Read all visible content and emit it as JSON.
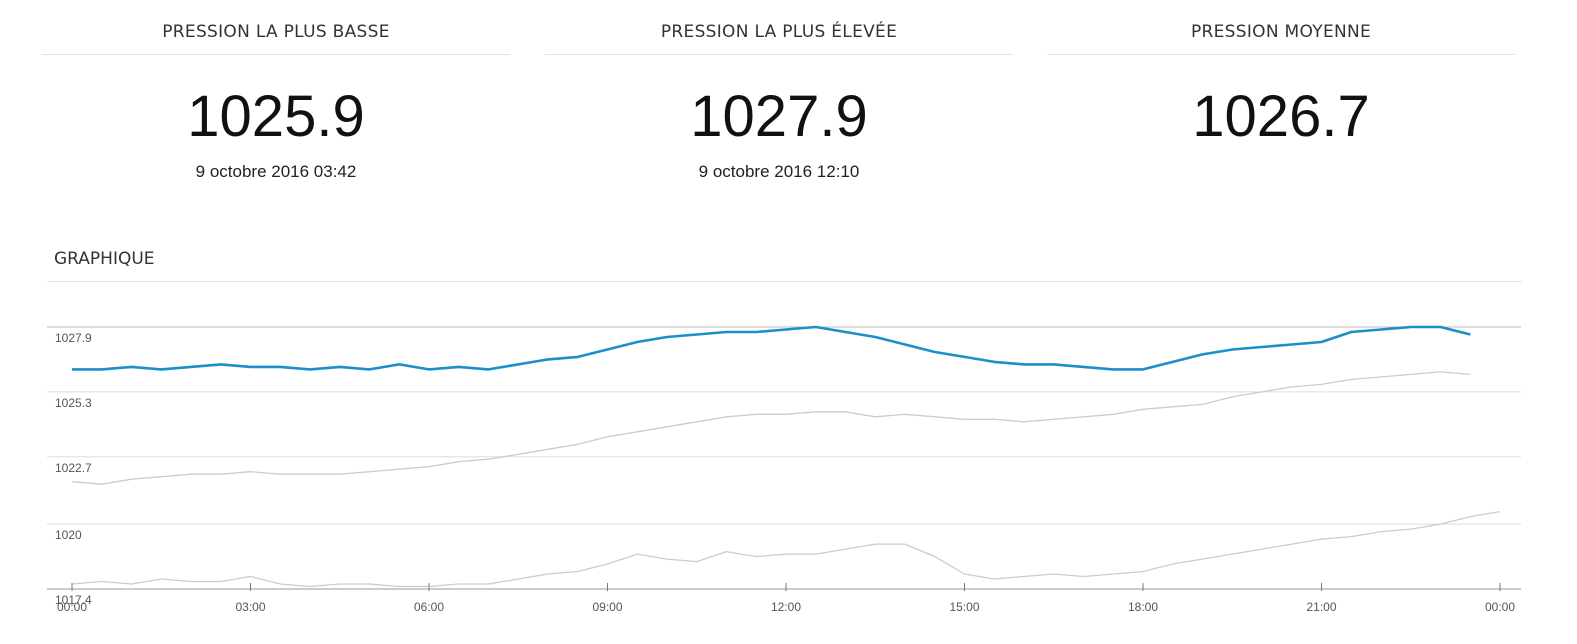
{
  "stats": [
    {
      "title": "PRESSION LA PLUS BASSE",
      "value": "1025.9",
      "date": "9 octobre 2016 03:42"
    },
    {
      "title": "PRESSION LA PLUS ÉLEVÉE",
      "value": "1027.9",
      "date": "9 octobre 2016 12:10"
    },
    {
      "title": "PRESSION MOYENNE",
      "value": "1026.7",
      "date": ""
    }
  ],
  "graph_title": "GRAPHIQUE",
  "chart_data": {
    "type": "line",
    "ylim": [
      1017.4,
      1027.9
    ],
    "y_ticks": [
      {
        "value": 1027.9,
        "label": "1027.9"
      },
      {
        "value": 1025.3,
        "label": "1025.3"
      },
      {
        "value": 1022.7,
        "label": "1022.7"
      },
      {
        "value": 1020,
        "label": "1020"
      },
      {
        "value": 1017.4,
        "label": "1017.4"
      }
    ],
    "xlim": [
      0,
      24
    ],
    "x_ticks": [
      {
        "value": 0,
        "label": "00:00"
      },
      {
        "value": 3,
        "label": "03:00"
      },
      {
        "value": 6,
        "label": "06:00"
      },
      {
        "value": 9,
        "label": "09:00"
      },
      {
        "value": 12,
        "label": "12:00"
      },
      {
        "value": 15,
        "label": "15:00"
      },
      {
        "value": 18,
        "label": "18:00"
      },
      {
        "value": 21,
        "label": "21:00"
      },
      {
        "value": 24,
        "label": "00:00"
      }
    ],
    "grid": true,
    "colors": {
      "primary": "#1a8fc9",
      "secondary": "#cccccc",
      "grid": "#dddddd",
      "top_line": "#bbbbbb"
    },
    "series": [
      {
        "color": "#1a8fc9",
        "x": [
          0,
          0.5,
          1,
          1.5,
          2,
          2.5,
          3,
          3.5,
          4,
          4.5,
          5,
          5.5,
          6,
          6.5,
          7,
          7.5,
          8,
          8.5,
          9,
          9.5,
          10,
          10.5,
          11,
          11.5,
          12,
          12.5,
          13,
          13.5,
          14,
          14.5,
          15,
          15.5,
          16,
          16.5,
          17,
          17.5,
          18,
          18.5,
          19,
          19.5,
          20,
          20.5,
          21,
          21.5,
          22,
          22.5,
          23,
          23.5
        ],
        "y": [
          1026.2,
          1026.2,
          1026.3,
          1026.2,
          1026.3,
          1026.4,
          1026.3,
          1026.3,
          1026.2,
          1026.3,
          1026.2,
          1026.4,
          1026.2,
          1026.3,
          1026.2,
          1026.4,
          1026.6,
          1026.7,
          1027.0,
          1027.3,
          1027.5,
          1027.6,
          1027.7,
          1027.7,
          1027.8,
          1027.9,
          1027.7,
          1027.5,
          1027.2,
          1026.9,
          1026.7,
          1026.5,
          1026.4,
          1026.4,
          1026.3,
          1026.2,
          1026.2,
          1026.5,
          1026.8,
          1027.0,
          1027.1,
          1027.2,
          1027.3,
          1027.7,
          1027.8,
          1027.9,
          1027.9,
          1027.6
        ]
      },
      {
        "color": "#cccccc",
        "x": [
          0,
          0.5,
          1,
          1.5,
          2,
          2.5,
          3,
          3.5,
          4,
          4.5,
          5,
          5.5,
          6,
          6.5,
          7,
          7.5,
          8,
          8.5,
          9,
          9.5,
          10,
          10.5,
          11,
          11.5,
          12,
          12.5,
          13,
          13.5,
          14,
          14.5,
          15,
          15.5,
          16,
          16.5,
          17,
          17.5,
          18,
          18.5,
          19,
          19.5,
          20,
          20.5,
          21,
          21.5,
          22,
          22.5,
          23,
          23.5
        ],
        "y": [
          1021.7,
          1021.6,
          1021.8,
          1021.9,
          1022.0,
          1022.0,
          1022.1,
          1022.0,
          1022.0,
          1022.0,
          1022.1,
          1022.2,
          1022.3,
          1022.5,
          1022.6,
          1022.8,
          1023.0,
          1023.2,
          1023.5,
          1023.7,
          1023.9,
          1024.1,
          1024.3,
          1024.4,
          1024.4,
          1024.5,
          1024.5,
          1024.3,
          1024.4,
          1024.3,
          1024.2,
          1024.2,
          1024.1,
          1024.2,
          1024.3,
          1024.4,
          1024.6,
          1024.7,
          1024.8,
          1025.1,
          1025.3,
          1025.5,
          1025.6,
          1025.8,
          1025.9,
          1026.0,
          1026.1,
          1026.0
        ]
      },
      {
        "color": "#cccccc",
        "x": [
          0,
          0.5,
          1,
          1.5,
          2,
          2.5,
          3,
          3.5,
          4,
          4.5,
          5,
          5.5,
          6,
          6.5,
          7,
          7.5,
          8,
          8.5,
          9,
          9.5,
          10,
          10.5,
          11,
          11.5,
          12,
          12.5,
          13,
          13.5,
          14,
          14.5,
          15,
          15.5,
          16,
          16.5,
          17,
          17.5,
          18,
          18.5,
          19,
          19.5,
          20,
          20.5,
          21,
          21.5,
          22,
          22.5,
          23,
          23.5,
          24
        ],
        "y": [
          1017.6,
          1017.7,
          1017.6,
          1017.8,
          1017.7,
          1017.7,
          1017.9,
          1017.6,
          1017.5,
          1017.6,
          1017.6,
          1017.5,
          1017.5,
          1017.6,
          1017.6,
          1017.8,
          1018.0,
          1018.1,
          1018.4,
          1018.8,
          1018.6,
          1018.5,
          1018.9,
          1018.7,
          1018.8,
          1018.8,
          1019.0,
          1019.2,
          1019.2,
          1018.7,
          1018.0,
          1017.8,
          1017.9,
          1018.0,
          1017.9,
          1018.0,
          1018.1,
          1018.4,
          1018.6,
          1018.8,
          1019.0,
          1019.2,
          1019.4,
          1019.5,
          1019.7,
          1019.8,
          1020.0,
          1020.3,
          1020.5
        ]
      }
    ]
  }
}
